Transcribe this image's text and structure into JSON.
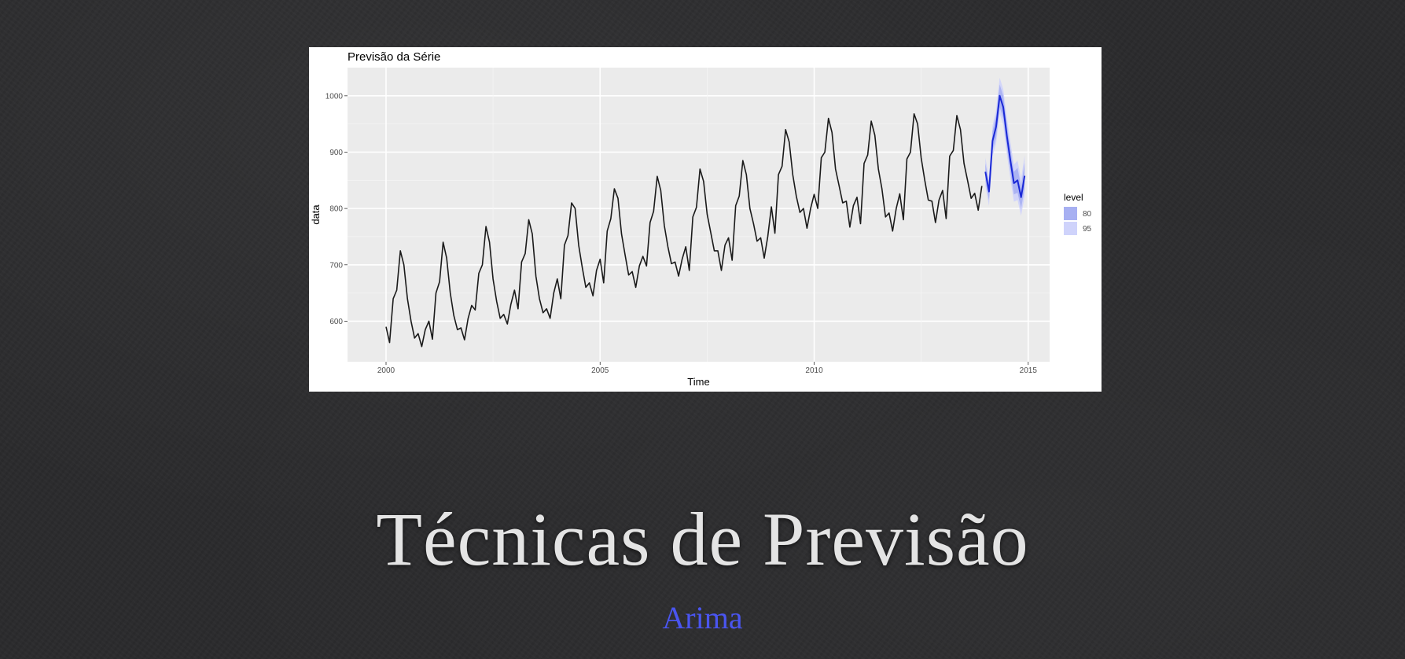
{
  "slide": {
    "title": "Técnicas de Previsão",
    "subtitle": "Arima",
    "subtitle_color": "#4a55f0",
    "background_color": "#2b2b2d"
  },
  "chart_data": {
    "type": "line",
    "title": "Previsão da Série",
    "xlabel": "Time",
    "ylabel": "data",
    "xlim": [
      1999.1,
      2015.5
    ],
    "ylim": [
      528,
      1050
    ],
    "x_ticks": [
      2000,
      2005,
      2010,
      2015
    ],
    "x_tick_labels": [
      "2000",
      "2005",
      "2010",
      "2015"
    ],
    "y_ticks": [
      600,
      700,
      800,
      900,
      1000
    ],
    "y_tick_labels": [
      "600",
      "700",
      "800",
      "900",
      "1000"
    ],
    "grid": true,
    "panel_background": "#ebebeb",
    "legend": {
      "title": "level",
      "position": "right",
      "entries": [
        {
          "label": "80",
          "color": "#a7b0f2"
        },
        {
          "label": "95",
          "color": "#cfd3fb"
        }
      ]
    },
    "series": [
      {
        "role": "observed",
        "color": "#1a1a1a",
        "x_start": 2000.0,
        "step": 0.0833333,
        "values": [
          590,
          562,
          640,
          655,
          725,
          700,
          640,
          600,
          570,
          578,
          555,
          585,
          600,
          568,
          650,
          670,
          740,
          712,
          650,
          610,
          585,
          588,
          567,
          605,
          628,
          620,
          685,
          700,
          768,
          740,
          675,
          635,
          605,
          612,
          595,
          630,
          655,
          622,
          705,
          720,
          780,
          755,
          680,
          640,
          615,
          622,
          605,
          650,
          675,
          640,
          735,
          752,
          810,
          800,
          735,
          695,
          660,
          668,
          645,
          690,
          710,
          668,
          760,
          782,
          835,
          818,
          755,
          718,
          682,
          688,
          660,
          698,
          715,
          698,
          775,
          795,
          857,
          832,
          770,
          732,
          702,
          705,
          680,
          710,
          732,
          690,
          785,
          802,
          870,
          848,
          790,
          758,
          725,
          725,
          690,
          735,
          748,
          708,
          805,
          822,
          885,
          860,
          800,
          773,
          742,
          748,
          712,
          750,
          803,
          756,
          860,
          875,
          940,
          918,
          860,
          822,
          793,
          800,
          765,
          800,
          825,
          800,
          890,
          900,
          960,
          935,
          870,
          840,
          810,
          813,
          767,
          805,
          820,
          773,
          880,
          895,
          955,
          930,
          870,
          835,
          785,
          792,
          760,
          800,
          826,
          780,
          888,
          900,
          968,
          950,
          890,
          850,
          815,
          813,
          775,
          815,
          832,
          782,
          893,
          903,
          965,
          940,
          880,
          850,
          818,
          827,
          797,
          840
        ]
      },
      {
        "role": "forecast",
        "color": "#1a28d6",
        "x_start": 2014.0,
        "step": 0.0833333,
        "values": [
          865,
          830,
          920,
          945,
          1000,
          980,
          930,
          885,
          845,
          850,
          820,
          858
        ],
        "lower80": [
          850,
          815,
          903,
          925,
          980,
          960,
          910,
          865,
          825,
          828,
          800,
          835
        ],
        "upper80": [
          880,
          845,
          937,
          965,
          1020,
          1000,
          950,
          905,
          865,
          872,
          840,
          881
        ],
        "lower95": [
          840,
          805,
          893,
          915,
          968,
          948,
          898,
          852,
          812,
          815,
          787,
          822
        ],
        "upper95": [
          890,
          855,
          947,
          975,
          1032,
          1012,
          962,
          918,
          878,
          885,
          853,
          894
        ]
      }
    ]
  }
}
